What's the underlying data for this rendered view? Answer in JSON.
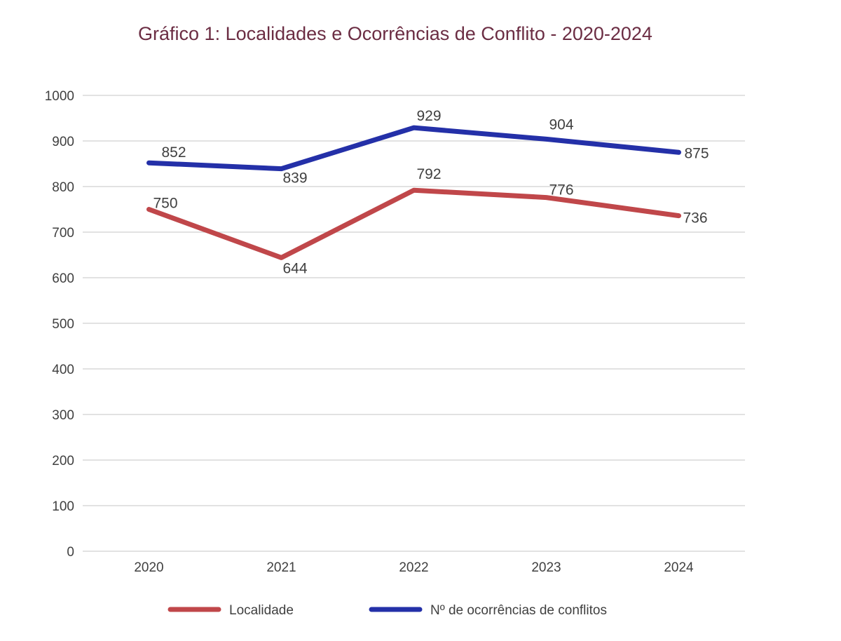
{
  "chart_data": {
    "type": "line",
    "title": "Gráfico 1: Localidades e Ocorrências de Conflito - 2020-2024",
    "xlabel": "",
    "ylabel": "",
    "categories": [
      "2020",
      "2021",
      "2022",
      "2023",
      "2024"
    ],
    "ylim": [
      0,
      1000
    ],
    "yticks": [
      0,
      100,
      200,
      300,
      400,
      500,
      600,
      700,
      800,
      900,
      1000
    ],
    "grid": true,
    "legend_position": "bottom",
    "series": [
      {
        "name": "Localidade",
        "color": "#c0474a",
        "values": [
          750,
          644,
          792,
          776,
          736
        ]
      },
      {
        "name": "Nº de ocorrências de conflitos",
        "color": "#2430a8",
        "values": [
          852,
          839,
          929,
          904,
          875
        ]
      }
    ]
  }
}
